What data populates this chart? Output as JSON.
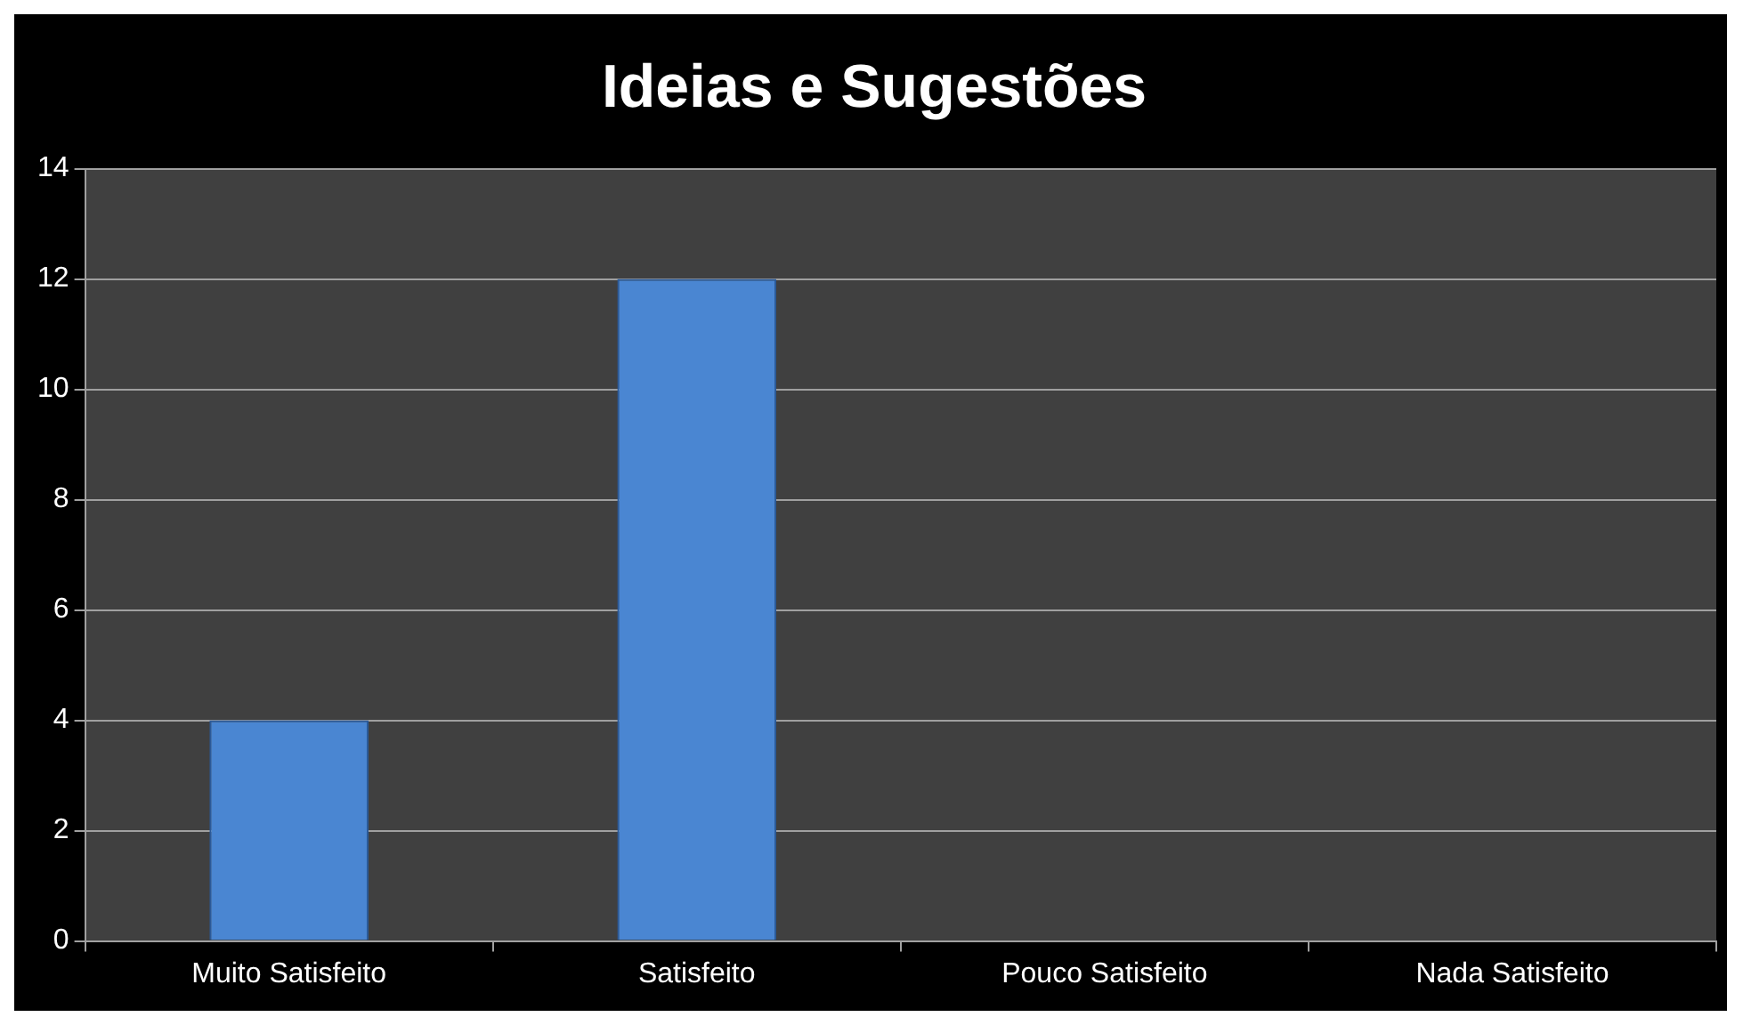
{
  "chart_data": {
    "type": "bar",
    "title": "Ideias e Sugestões",
    "categories": [
      "Muito Satisfeito",
      "Satisfeito",
      "Pouco Satisfeito",
      "Nada Satisfeito"
    ],
    "values": [
      4,
      12,
      0,
      0
    ],
    "color": "#4a86d2",
    "ylim": [
      0,
      14
    ],
    "yticks": [
      0,
      2,
      4,
      6,
      8,
      10,
      12,
      14
    ],
    "grid": "y",
    "legend": false
  }
}
